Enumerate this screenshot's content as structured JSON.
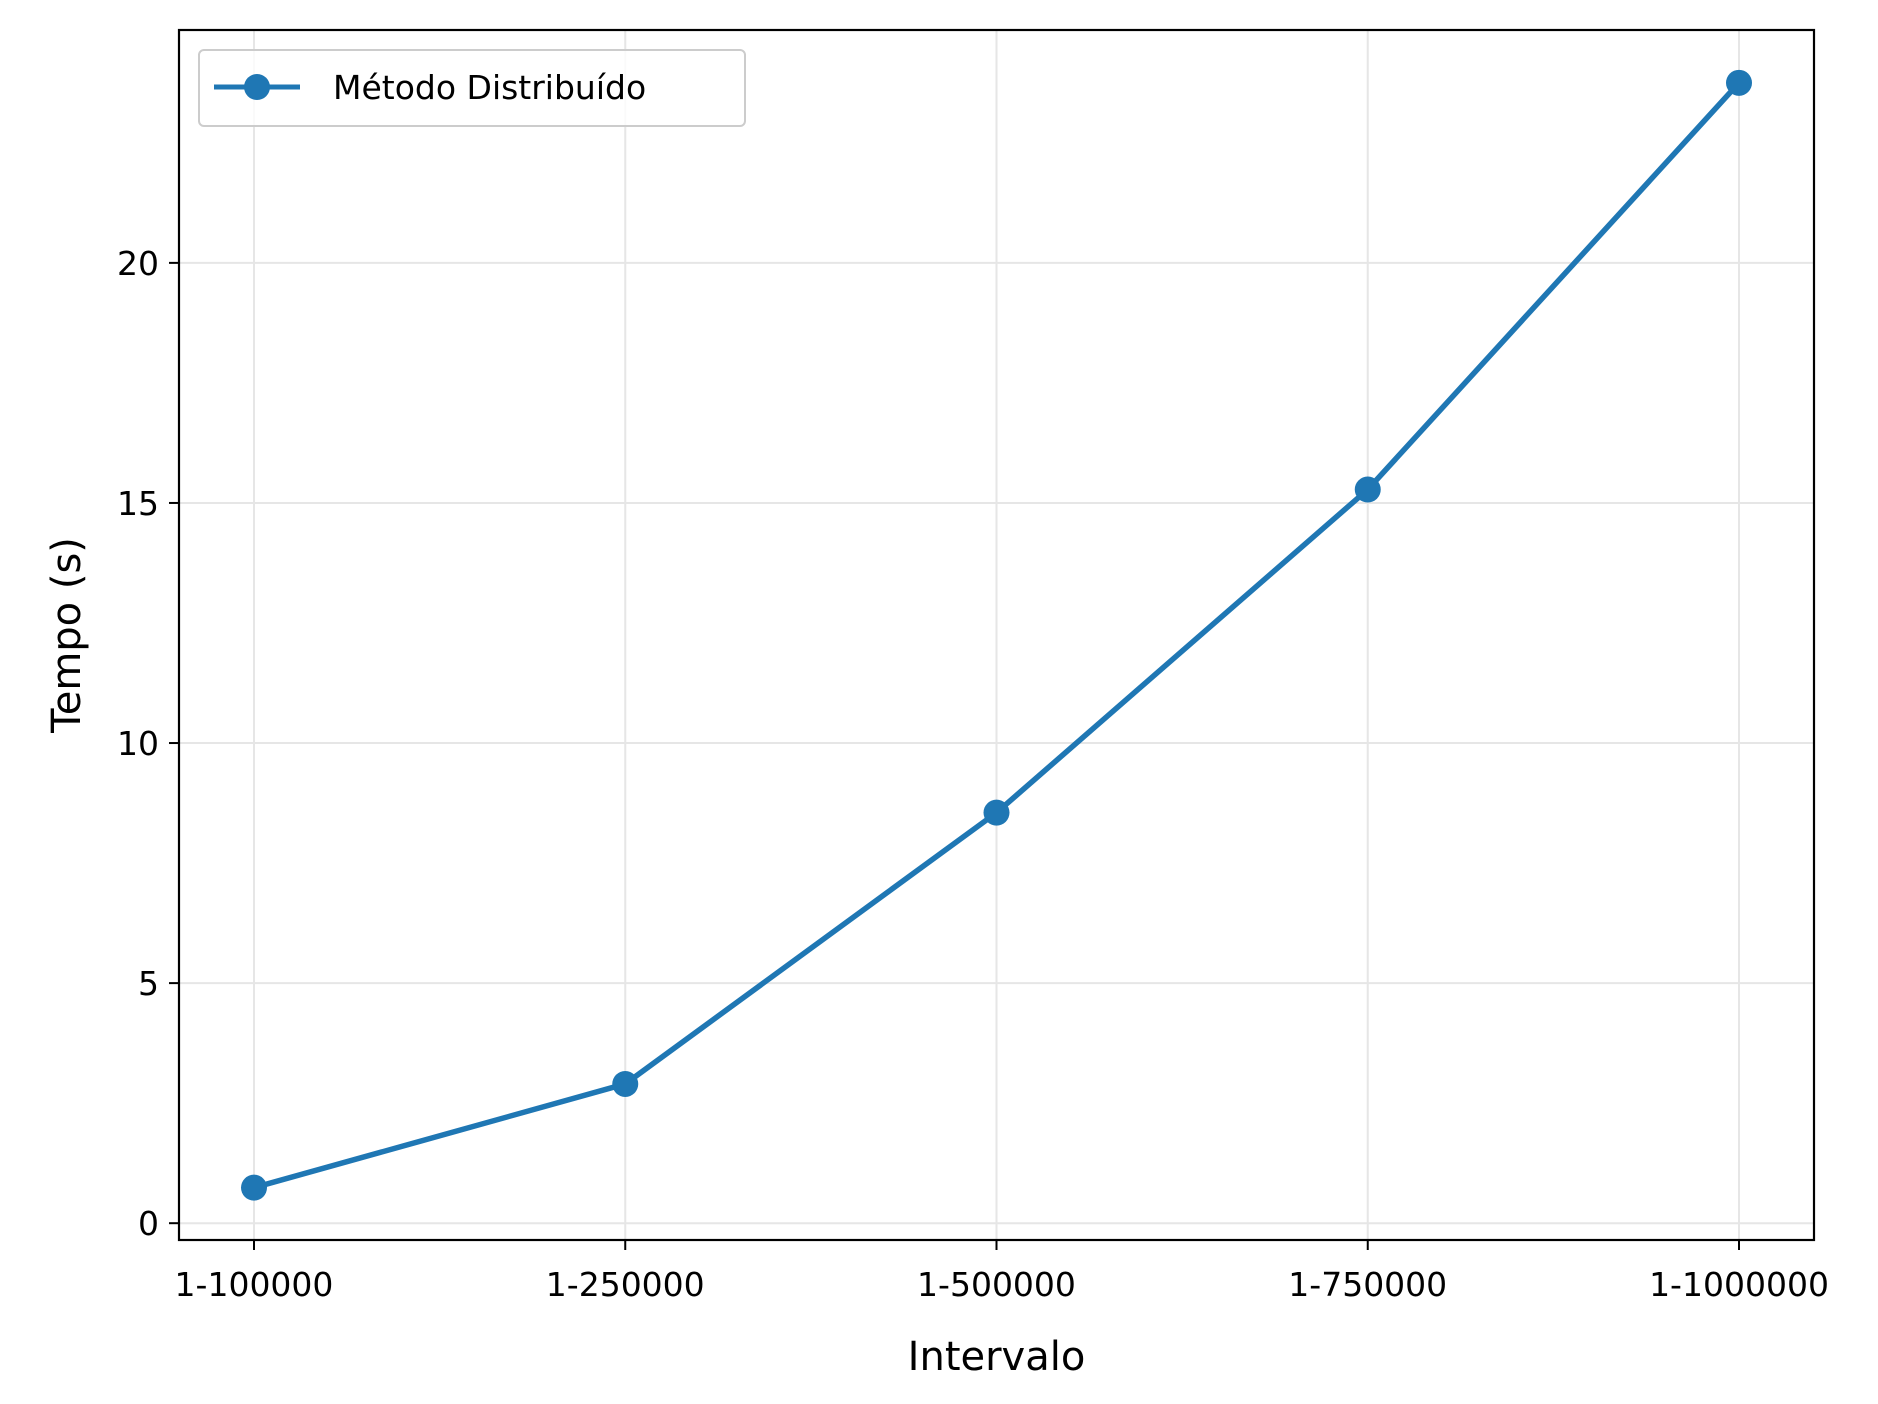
{
  "chart_data": {
    "type": "line",
    "xlabel": "Intervalo",
    "ylabel": "Tempo (s)",
    "categories": [
      "1-100000",
      "1-250000",
      "1-500000",
      "1-750000",
      "1-1000000"
    ],
    "series": [
      {
        "name": "Método Distribuído",
        "values": [
          0.74,
          2.9,
          8.55,
          15.28,
          23.75
        ],
        "color": "#1f77b4",
        "marker": "circle"
      }
    ],
    "yticks": [
      0,
      5,
      10,
      15,
      20
    ],
    "ylim": [
      -0.35,
      24.85
    ],
    "grid": true,
    "legend_position": "top-left"
  }
}
